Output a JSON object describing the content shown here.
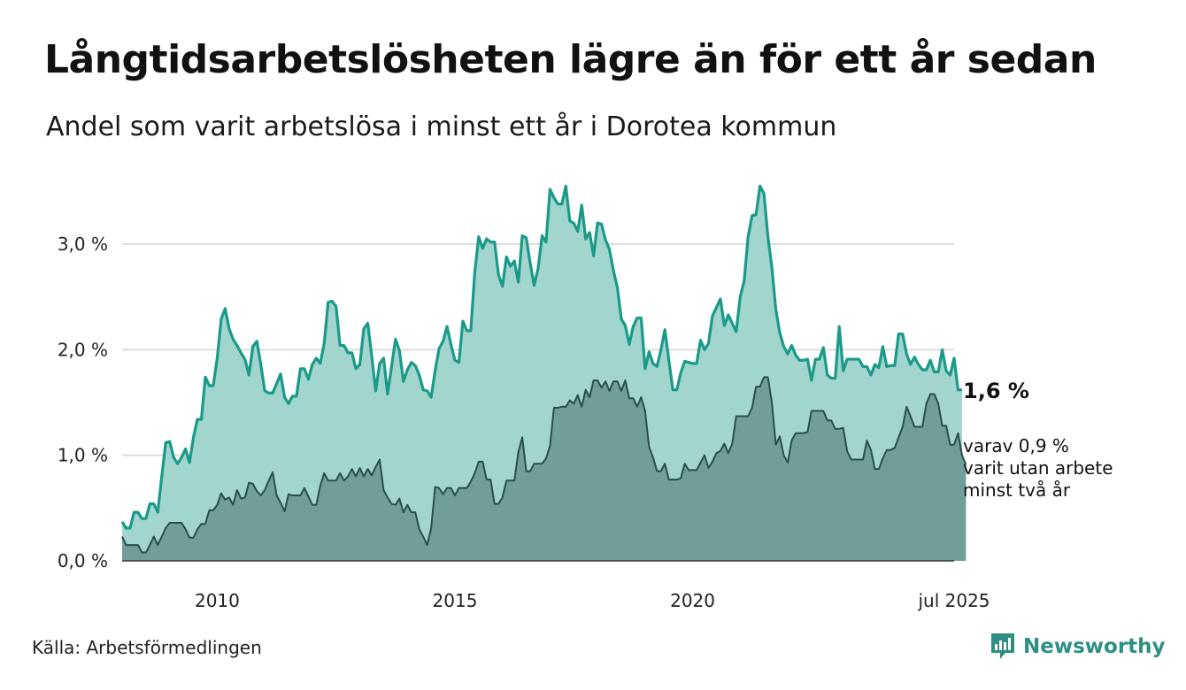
{
  "header": {
    "title": "Långtidsarbetslösheten lägre än för ett år sedan",
    "subtitle": "Andel som varit arbetslösa i minst ett år i Dorotea kommun"
  },
  "footer": {
    "source": "Källa: Arbetsförmedlingen",
    "brand": "Newsworthy"
  },
  "colors": {
    "main_line": "#1a9a88",
    "main_fill": "#a3d5cf",
    "sub_line": "#2a4f49",
    "sub_fill": "#6f9f98",
    "grid": "#dddddd",
    "brand": "#2f8f83"
  },
  "chart_data": {
    "type": "area",
    "x_start": "2008-01",
    "x_end": "2025-07",
    "x_step": "month",
    "ylim": [
      0,
      3.6
    ],
    "y_ticks": [
      0.0,
      1.0,
      2.0,
      3.0
    ],
    "y_tick_labels": [
      "0,0 %",
      "1,0 %",
      "2,0 %",
      "3,0 %"
    ],
    "x_tick_labels": [
      {
        "at": "2010-01",
        "label": "2010"
      },
      {
        "at": "2015-01",
        "label": "2015"
      },
      {
        "at": "2020-01",
        "label": "2020"
      },
      {
        "at": "2025-07",
        "label": "jul 2025"
      }
    ],
    "grid": true,
    "end_labels": {
      "main": "1,6 %",
      "sub_lines": [
        "varav 0,9 %",
        "varit utan arbete",
        "minst två år"
      ]
    },
    "series": [
      {
        "key": "minst_ett_ar",
        "values": [
          0.37,
          0.31,
          0.31,
          0.46,
          0.46,
          0.4,
          0.4,
          0.54,
          0.54,
          0.46,
          0.8,
          1.12,
          1.13,
          0.98,
          0.92,
          0.98,
          1.06,
          0.93,
          1.17,
          1.34,
          1.34,
          1.74,
          1.66,
          1.66,
          1.92,
          2.29,
          2.39,
          2.2,
          2.1,
          2.04,
          1.97,
          1.91,
          1.76,
          2.03,
          2.08,
          1.86,
          1.61,
          1.59,
          1.59,
          1.68,
          1.77,
          1.55,
          1.49,
          1.56,
          1.56,
          1.82,
          1.82,
          1.72,
          1.86,
          1.92,
          1.87,
          2.06,
          2.45,
          2.46,
          2.41,
          2.04,
          2.04,
          1.97,
          1.97,
          1.82,
          1.86,
          2.2,
          2.25,
          1.94,
          1.61,
          1.87,
          1.92,
          1.58,
          1.84,
          2.1,
          1.99,
          1.7,
          1.81,
          1.88,
          1.85,
          1.76,
          1.62,
          1.61,
          1.55,
          1.8,
          2.01,
          2.08,
          2.22,
          2.05,
          1.9,
          1.88,
          2.27,
          2.18,
          2.18,
          2.73,
          3.07,
          2.96,
          3.05,
          3.02,
          3.02,
          2.71,
          2.6,
          2.88,
          2.79,
          2.84,
          2.64,
          3.08,
          3.06,
          2.82,
          2.61,
          2.77,
          3.08,
          3.02,
          3.52,
          3.44,
          3.38,
          3.38,
          3.55,
          3.22,
          3.2,
          3.12,
          3.37,
          3.05,
          3.11,
          2.89,
          3.2,
          3.19,
          3.04,
          2.95,
          2.75,
          2.59,
          2.29,
          2.23,
          2.05,
          2.22,
          2.3,
          2.3,
          1.82,
          1.98,
          1.87,
          1.84,
          2.0,
          2.19,
          1.9,
          1.62,
          1.62,
          1.78,
          1.89,
          1.88,
          1.87,
          1.87,
          2.09,
          2.0,
          2.06,
          2.32,
          2.4,
          2.48,
          2.23,
          2.33,
          2.25,
          2.17,
          2.5,
          2.65,
          3.07,
          3.27,
          3.28,
          3.55,
          3.48,
          3.07,
          2.78,
          2.38,
          2.16,
          2.03,
          1.96,
          2.04,
          1.95,
          1.9,
          1.9,
          1.91,
          1.71,
          1.91,
          1.91,
          2.02,
          1.76,
          1.73,
          1.73,
          2.22,
          1.8,
          1.91,
          1.91,
          1.91,
          1.91,
          1.84,
          1.84,
          1.76,
          1.86,
          1.83,
          2.03,
          1.84,
          1.85,
          1.85,
          2.15,
          2.15,
          1.96,
          1.86,
          1.93,
          1.86,
          1.81,
          1.81,
          1.9,
          1.79,
          1.79,
          2.0,
          1.8,
          1.76,
          1.92,
          1.62,
          1.62
        ]
      },
      {
        "key": "minst_tva_ar",
        "values": [
          0.23,
          0.15,
          0.15,
          0.15,
          0.15,
          0.08,
          0.08,
          0.15,
          0.23,
          0.15,
          0.23,
          0.31,
          0.36,
          0.36,
          0.36,
          0.36,
          0.3,
          0.22,
          0.22,
          0.3,
          0.35,
          0.35,
          0.48,
          0.48,
          0.53,
          0.64,
          0.58,
          0.6,
          0.53,
          0.67,
          0.59,
          0.6,
          0.74,
          0.73,
          0.66,
          0.62,
          0.67,
          0.76,
          0.84,
          0.62,
          0.55,
          0.47,
          0.63,
          0.62,
          0.62,
          0.62,
          0.69,
          0.61,
          0.53,
          0.53,
          0.71,
          0.83,
          0.76,
          0.76,
          0.76,
          0.83,
          0.76,
          0.8,
          0.87,
          0.8,
          0.88,
          0.8,
          0.87,
          0.81,
          0.89,
          0.96,
          0.67,
          0.6,
          0.54,
          0.53,
          0.59,
          0.46,
          0.53,
          0.46,
          0.46,
          0.3,
          0.23,
          0.15,
          0.31,
          0.7,
          0.69,
          0.63,
          0.69,
          0.69,
          0.62,
          0.69,
          0.69,
          0.69,
          0.75,
          0.83,
          0.94,
          0.94,
          0.77,
          0.77,
          0.54,
          0.54,
          0.6,
          0.76,
          0.76,
          0.76,
          1.03,
          1.17,
          0.85,
          0.85,
          0.92,
          0.92,
          0.92,
          0.97,
          1.09,
          1.45,
          1.45,
          1.46,
          1.46,
          1.52,
          1.49,
          1.57,
          1.46,
          1.62,
          1.55,
          1.71,
          1.71,
          1.64,
          1.7,
          1.61,
          1.7,
          1.7,
          1.61,
          1.71,
          1.54,
          1.54,
          1.46,
          1.55,
          1.42,
          1.08,
          0.98,
          0.85,
          0.85,
          0.92,
          0.77,
          0.77,
          0.77,
          0.78,
          0.92,
          0.86,
          0.86,
          0.86,
          0.93,
          1.0,
          0.88,
          0.94,
          1.02,
          1.04,
          1.11,
          1.02,
          1.11,
          1.37,
          1.37,
          1.37,
          1.37,
          1.45,
          1.65,
          1.65,
          1.74,
          1.74,
          1.5,
          1.1,
          1.18,
          1.0,
          0.93,
          1.14,
          1.21,
          1.21,
          1.21,
          1.22,
          1.42,
          1.42,
          1.42,
          1.42,
          1.33,
          1.33,
          1.25,
          1.25,
          1.26,
          1.04,
          0.96,
          0.96,
          0.96,
          0.96,
          1.14,
          1.05,
          0.87,
          0.87,
          0.97,
          1.05,
          1.05,
          1.07,
          1.17,
          1.27,
          1.46,
          1.37,
          1.27,
          1.27,
          1.27,
          1.49,
          1.58,
          1.58,
          1.49,
          1.28,
          1.28,
          1.1,
          1.1,
          1.21,
          1.0,
          0.91
        ]
      }
    ]
  }
}
